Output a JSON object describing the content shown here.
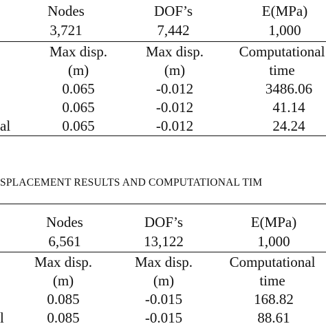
{
  "table1": {
    "header": {
      "nodes": "Nodes",
      "dofs": "DOF’s",
      "emod": "E(MPa)"
    },
    "values": {
      "nodes": "3,721",
      "dofs": "7,442",
      "emod": "1,000"
    },
    "columns": {
      "col1": [
        "Max disp.",
        "(m)"
      ],
      "col2": [
        "Max disp.",
        "(m)"
      ],
      "col3": [
        "Computational",
        "time"
      ]
    },
    "rows": [
      {
        "label": "",
        "c1": "0.065",
        "c2": "-0.012",
        "c3": "3486.06"
      },
      {
        "label": "",
        "c1": "0.065",
        "c2": "-0.012",
        "c3": "41.14"
      },
      {
        "label": "al",
        "c1": "0.065",
        "c2": "-0.012",
        "c3": "24.24"
      }
    ]
  },
  "caption": "SPLACEMENT RESULTS AND COMPUTATIONAL TIM",
  "table2": {
    "header": {
      "nodes": "Nodes",
      "dofs": "DOF’s",
      "emod": "E(MPa)"
    },
    "values": {
      "nodes": "6,561",
      "dofs": "13,122",
      "emod": "1,000"
    },
    "columns": {
      "col1": [
        "Max disp.",
        "(m)"
      ],
      "col2": [
        "Max disp.",
        "(m)"
      ],
      "col3": [
        "Computational",
        "time"
      ]
    },
    "rows": [
      {
        "label": "",
        "c1": "0.085",
        "c2": "-0.015",
        "c3": "168.82"
      },
      {
        "label": "l",
        "c1": "0.085",
        "c2": "-0.015",
        "c3": "88.61"
      }
    ]
  }
}
